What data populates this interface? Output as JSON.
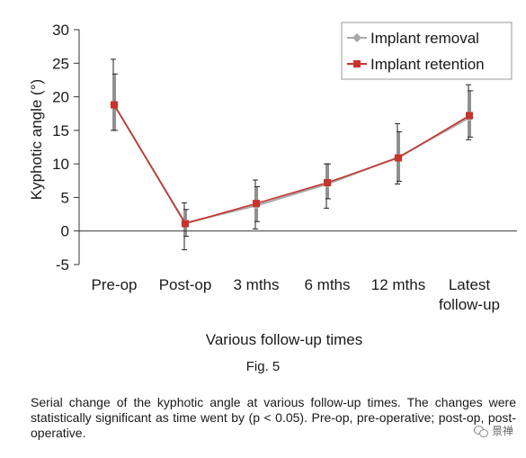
{
  "chart_data": {
    "type": "line",
    "title": "",
    "xlabel": "Various follow-up times",
    "ylabel": "Kyphotic angle (°)",
    "categories": [
      "Pre-op",
      "Post-op",
      "3 mths",
      "6 mths",
      "12 mths",
      "Latest follow-up"
    ],
    "category_lines": [
      [
        "Pre-op"
      ],
      [
        "Post-op"
      ],
      [
        "3 mths"
      ],
      [
        "6 mths"
      ],
      [
        "12 mths"
      ],
      [
        "Latest",
        "follow-up"
      ]
    ],
    "ylim": [
      -5,
      30
    ],
    "yticks": [
      30,
      25,
      20,
      15,
      10,
      5,
      0,
      -5
    ],
    "grid": false,
    "legend_position": "top-right",
    "series": [
      {
        "name": "Implant removal",
        "color": "#a8a8a8",
        "marker": "diamond",
        "values": [
          18.8,
          1.2,
          3.8,
          7.0,
          11.0,
          16.9
        ],
        "error_high": [
          25.6,
          4.2,
          7.6,
          10.0,
          16.0,
          21.8
        ],
        "error_low": [
          15.0,
          -2.8,
          0.3,
          3.4,
          7.0,
          13.6
        ]
      },
      {
        "name": "Implant retention",
        "color": "#c8332b",
        "marker": "square",
        "values": [
          18.8,
          1.1,
          4.1,
          7.2,
          10.9,
          17.2
        ],
        "error_high": [
          23.4,
          3.2,
          6.6,
          10.0,
          14.8,
          20.9
        ],
        "error_low": [
          15.0,
          -0.8,
          1.4,
          4.8,
          7.4,
          14.0
        ]
      }
    ]
  },
  "figure": {
    "label": "Fig. 5",
    "caption": "Serial change of the kyphotic angle at various follow-up times. The changes were statistically significant as time went by (p < 0.05). Pre-op, pre-operative; post-op, post-operative."
  },
  "watermark": {
    "text": "景禅",
    "icon": "wechat-icon"
  }
}
